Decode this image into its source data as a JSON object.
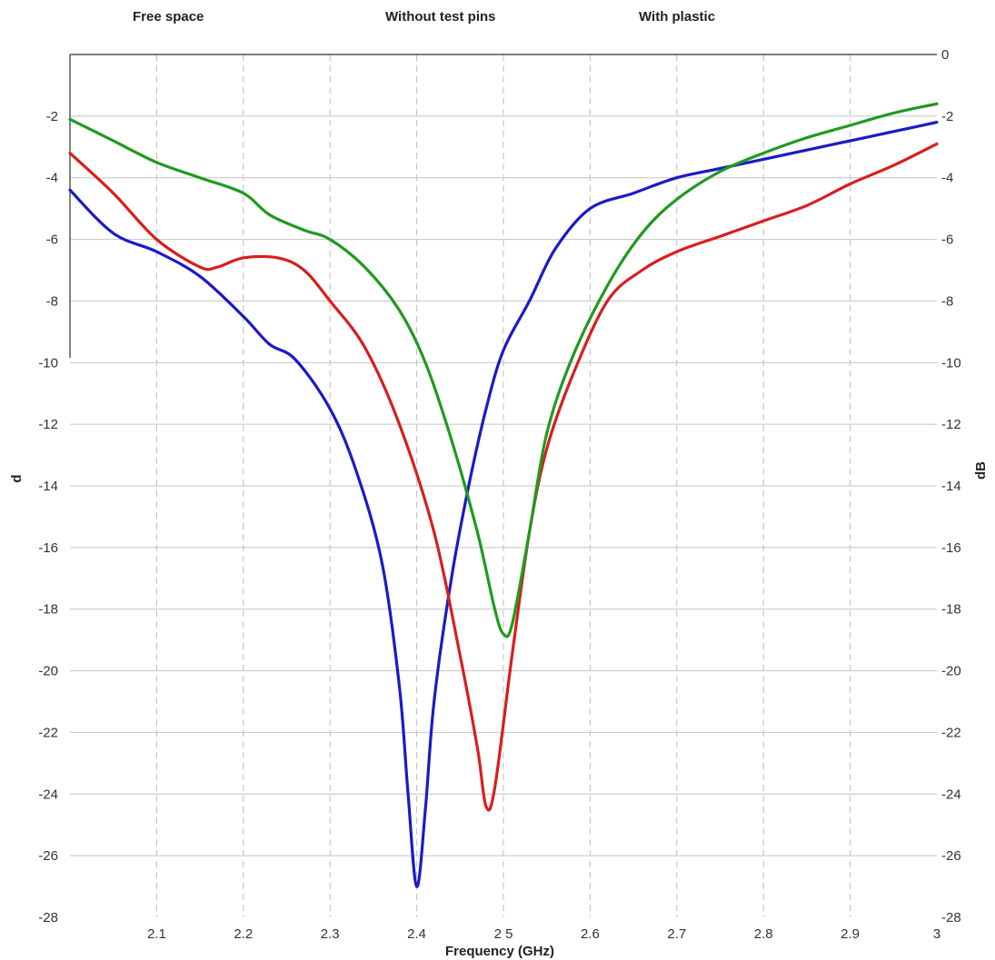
{
  "chart_data": {
    "type": "line",
    "xlabel": "Frequency (GHz)",
    "ylabel_left": "d",
    "ylabel_right": "dB",
    "xlim": [
      2.0,
      3.0
    ],
    "ylim": [
      -28,
      0
    ],
    "x_ticks": [
      2.1,
      2.2,
      2.3,
      2.4,
      2.5,
      2.6,
      2.7,
      2.8,
      2.9,
      3.0
    ],
    "x_tick_labels": [
      "2.1",
      "2.2",
      "2.3",
      "2.4",
      "2 5",
      "2.6",
      "2.7",
      "2.8",
      "2.9",
      "3"
    ],
    "y_ticks_left": [
      -2,
      -4,
      -6,
      -8,
      -10,
      -12,
      -14,
      -16,
      -18,
      -20,
      -22,
      -24,
      -26,
      -28
    ],
    "y_tick_labels_left": [
      "-2",
      "-4",
      "-6",
      "-8",
      "-10",
      "-12",
      "-14",
      "-16",
      "-18",
      "-20",
      "-22",
      "-24",
      "-26",
      "-28"
    ],
    "y_ticks_right": [
      0,
      -2,
      -4,
      -6,
      -8,
      -10,
      -12,
      -14,
      -16,
      -18,
      -20,
      -22,
      -24,
      -26,
      -28
    ],
    "y_tick_labels_right": [
      "0",
      "-2",
      "-4",
      "-6",
      "-8",
      "-10",
      "-12",
      "-14",
      "-16",
      "-18",
      "-20",
      "-22",
      "-24",
      "-26",
      "-28"
    ],
    "grid": true,
    "legend_position": "top",
    "series": [
      {
        "name": "Free space",
        "color": "#1a1ac8",
        "x": [
          2.0,
          2.05,
          2.1,
          2.15,
          2.2,
          2.23,
          2.26,
          2.3,
          2.33,
          2.36,
          2.38,
          2.39,
          2.4,
          2.41,
          2.42,
          2.44,
          2.46,
          2.48,
          2.5,
          2.53,
          2.56,
          2.6,
          2.65,
          2.7,
          2.75,
          2.8,
          2.85,
          2.9,
          2.95,
          3.0
        ],
        "y": [
          -4.4,
          -5.8,
          -6.4,
          -7.2,
          -8.5,
          -9.4,
          -9.9,
          -11.5,
          -13.5,
          -16.5,
          -20.5,
          -24.0,
          -27.0,
          -24.5,
          -21.0,
          -17.0,
          -14.0,
          -11.5,
          -9.6,
          -8.0,
          -6.3,
          -5.0,
          -4.5,
          -4.0,
          -3.7,
          -3.4,
          -3.1,
          -2.8,
          -2.5,
          -2.2
        ]
      },
      {
        "name": "Without test pins",
        "color": "#d81e1e",
        "x": [
          2.0,
          2.05,
          2.1,
          2.15,
          2.17,
          2.2,
          2.24,
          2.27,
          2.3,
          2.34,
          2.38,
          2.42,
          2.45,
          2.47,
          2.48,
          2.49,
          2.51,
          2.53,
          2.55,
          2.58,
          2.62,
          2.66,
          2.7,
          2.75,
          2.8,
          2.85,
          2.9,
          2.95,
          3.0
        ],
        "y": [
          -3.2,
          -4.5,
          -6.0,
          -6.9,
          -6.9,
          -6.6,
          -6.6,
          -7.0,
          -8.0,
          -9.5,
          -12.0,
          -15.5,
          -19.5,
          -22.5,
          -24.4,
          -23.8,
          -19.5,
          -15.5,
          -12.8,
          -10.4,
          -8.0,
          -7.0,
          -6.4,
          -5.9,
          -5.4,
          -4.9,
          -4.2,
          -3.6,
          -2.9
        ]
      },
      {
        "name": "With plastic",
        "color": "#1f9a1f",
        "x": [
          2.0,
          2.05,
          2.1,
          2.15,
          2.2,
          2.23,
          2.27,
          2.3,
          2.34,
          2.38,
          2.41,
          2.44,
          2.47,
          2.49,
          2.5,
          2.51,
          2.53,
          2.55,
          2.58,
          2.62,
          2.66,
          2.7,
          2.75,
          2.8,
          2.85,
          2.9,
          2.95,
          3.0
        ],
        "y": [
          -2.1,
          -2.8,
          -3.5,
          -4.0,
          -4.5,
          -5.2,
          -5.7,
          -6.0,
          -6.9,
          -8.3,
          -10.0,
          -12.5,
          -15.5,
          -18.0,
          -18.8,
          -18.5,
          -15.5,
          -12.3,
          -9.8,
          -7.5,
          -5.8,
          -4.7,
          -3.8,
          -3.2,
          -2.7,
          -2.3,
          -1.9,
          -1.6
        ]
      }
    ]
  }
}
